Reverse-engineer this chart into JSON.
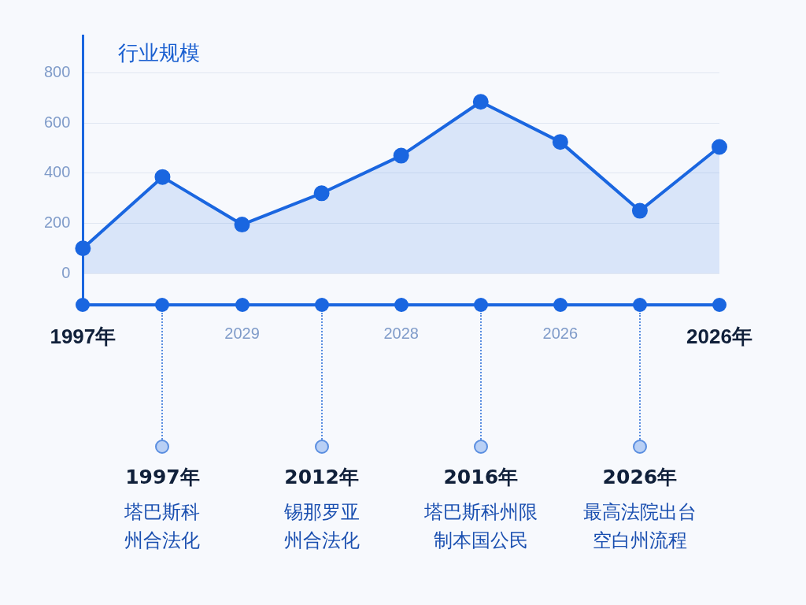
{
  "chart_data": {
    "type": "area",
    "title": "行业规模",
    "categories": [
      "1997年",
      null,
      "2029",
      null,
      "2028",
      null,
      "2026",
      null,
      "2026年"
    ],
    "series": [
      {
        "color": "#1a66e0",
        "values": [
          100,
          385,
          195,
          320,
          470,
          685,
          525,
          250,
          505
        ]
      }
    ],
    "ylim": [
      -125,
      950
    ],
    "yticks": [
      0,
      200,
      400,
      600,
      800
    ],
    "grid": "y",
    "marker": "circle",
    "annotations": [
      "1997年",
      "塔巴斯科州合法化",
      "2012年",
      "锡那罗亚州合法化",
      "2016年",
      "塔巴斯科州限制本国公民",
      "2026年",
      "最高法院出台空白州流程"
    ]
  }
}
